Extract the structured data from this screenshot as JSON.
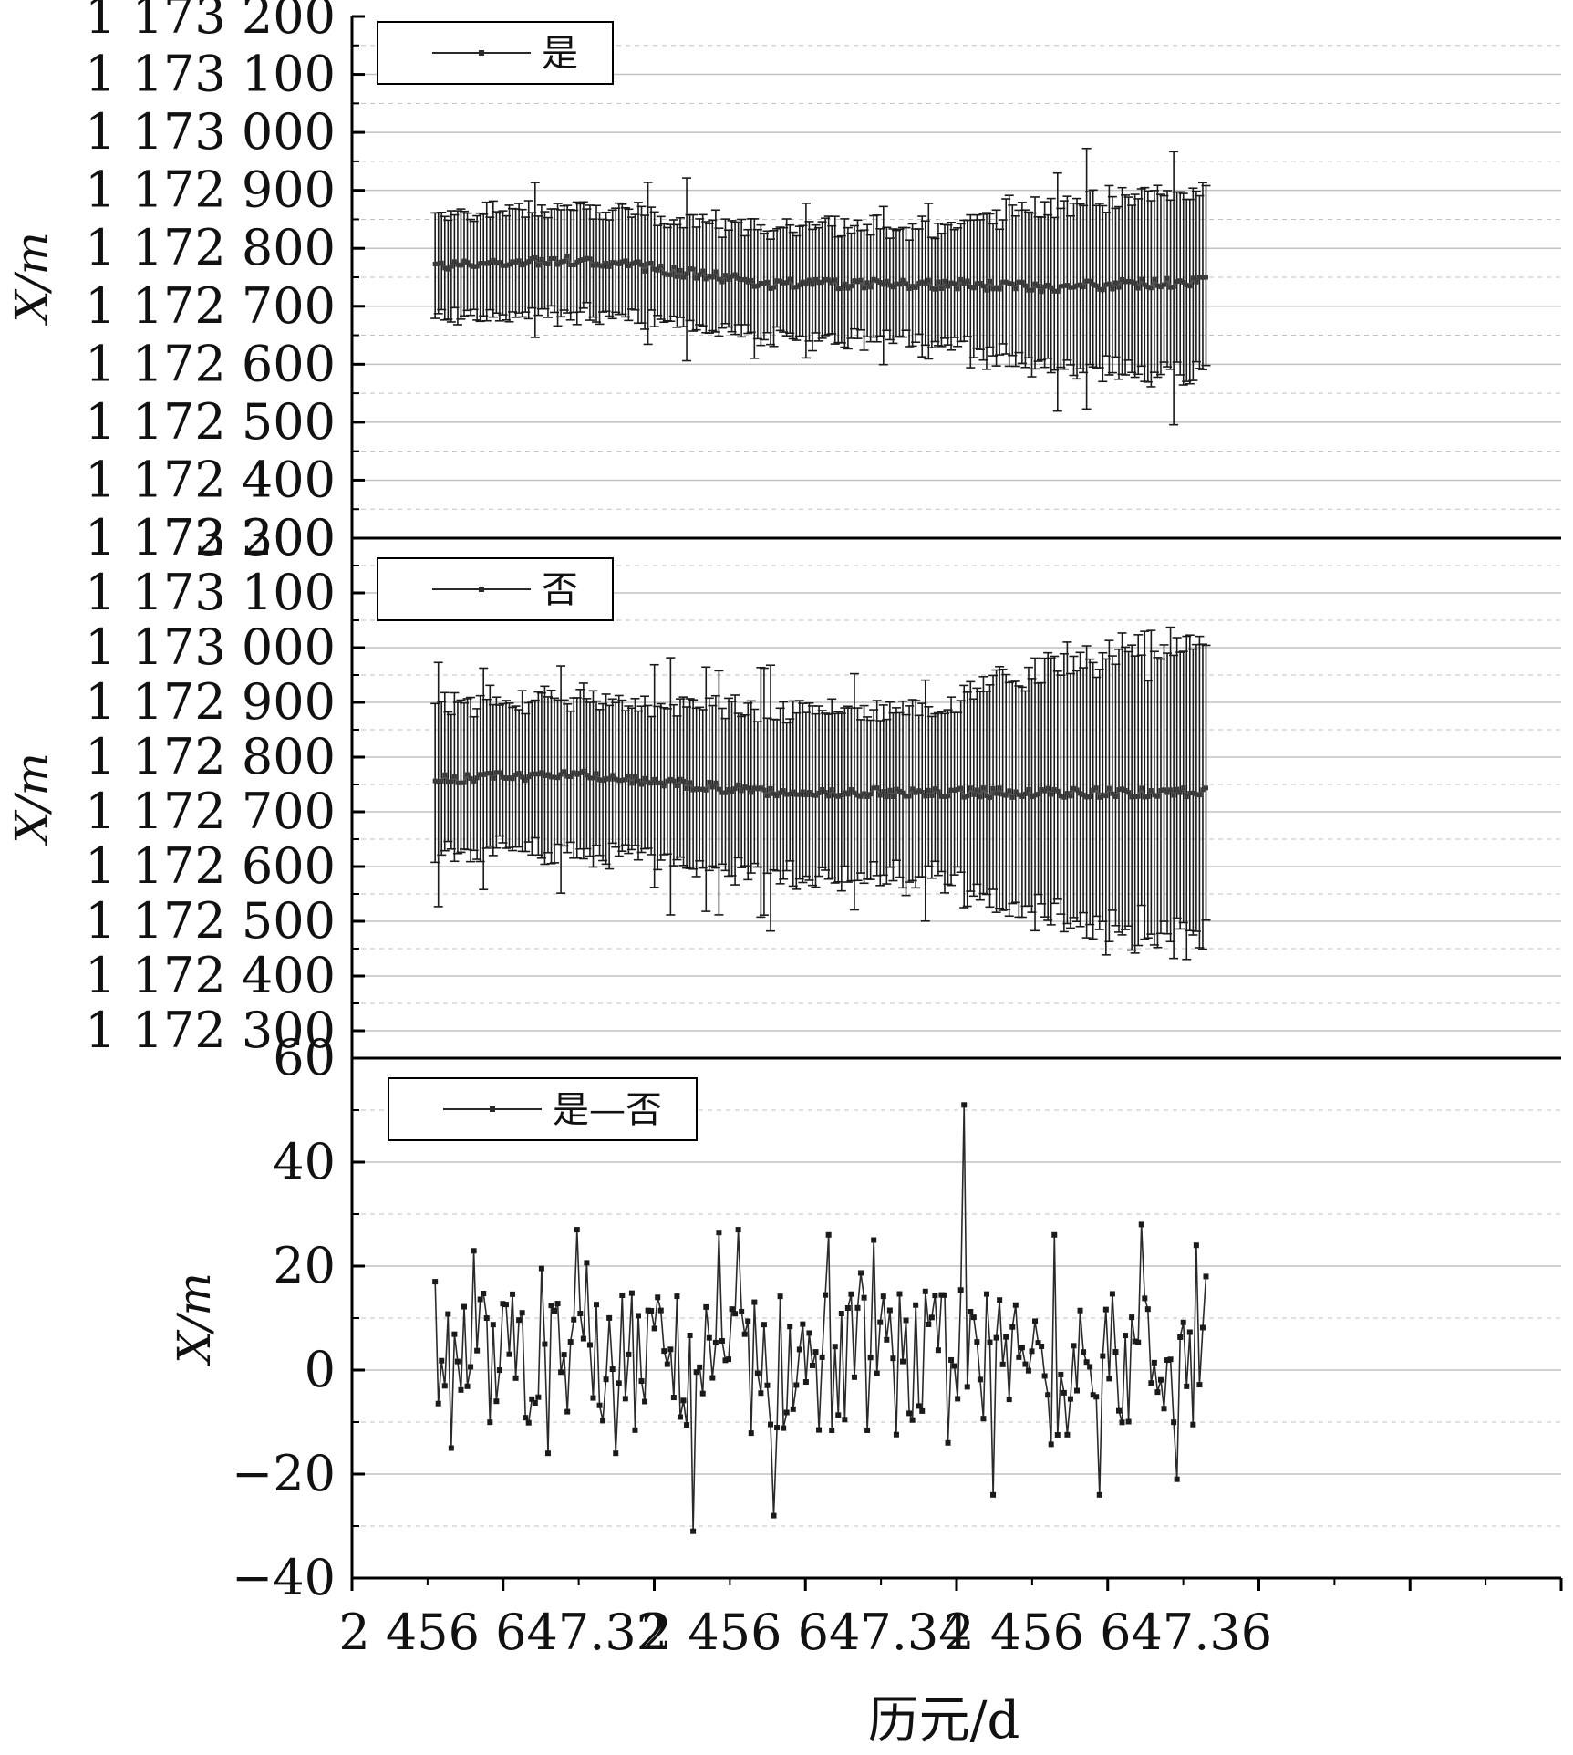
{
  "figure": {
    "x_axis_title": "历元/d",
    "x_ticks": [
      2456647.32,
      2456647.34,
      2456647.36
    ],
    "x_tick_labels": [
      "2 456 647.32",
      "2 456 647.34",
      "2 456 647.36"
    ]
  },
  "colors": {
    "series": "#2a2a2a",
    "errorbar": "#1a1a1a",
    "gridline": "#c2c2c2",
    "axis": "#000000"
  },
  "chart_data": [
    {
      "type": "line",
      "panel": "top",
      "legend": "是",
      "ylabel": "X/m",
      "ylim": [
        1172300,
        1173200
      ],
      "y_ticks": [
        1172300,
        1172400,
        1172500,
        1172600,
        1172700,
        1172800,
        1172900,
        1173000,
        1173100,
        1173200
      ],
      "y_tick_labels": [
        "1 172 300",
        "1 172 400",
        "1 172 500",
        "1 172 600",
        "1 172 700",
        "1 172 800",
        "1 172 900",
        "1 173 000",
        "1 173 100",
        "1 173 200"
      ],
      "xlim": [
        2456647.31,
        2456647.39
      ],
      "x_start": 2456647.3155,
      "x_end": 2456647.3665,
      "n_points": 240,
      "grid": true,
      "legend_position": "top-left",
      "error_bars": true,
      "mean_profile": [
        {
          "x": 2456647.3155,
          "y": 1172770
        },
        {
          "x": 2456647.325,
          "y": 1172780
        },
        {
          "x": 2456647.33,
          "y": 1172765
        },
        {
          "x": 2456647.338,
          "y": 1172738
        },
        {
          "x": 2456647.35,
          "y": 1172738
        },
        {
          "x": 2456647.355,
          "y": 1172733
        },
        {
          "x": 2456647.3665,
          "y": 1172742
        }
      ],
      "error_profile": [
        {
          "x": 2456647.3155,
          "y": 90
        },
        {
          "x": 2456647.325,
          "y": 90
        },
        {
          "x": 2456647.338,
          "y": 95
        },
        {
          "x": 2456647.35,
          "y": 100
        },
        {
          "x": 2456647.351,
          "y": 120
        },
        {
          "x": 2456647.36,
          "y": 150
        },
        {
          "x": 2456647.3665,
          "y": 165
        }
      ]
    },
    {
      "type": "line",
      "panel": "middle",
      "legend": "否",
      "ylabel": "X/m",
      "ylim": [
        1172250,
        1173200
      ],
      "y_ticks": [
        1172300,
        1172400,
        1172500,
        1172600,
        1172700,
        1172800,
        1172900,
        1173000,
        1173100,
        1173200
      ],
      "y_tick_labels": [
        "1 172 300",
        "1 172 400",
        "1 172 500",
        "1 172 600",
        "1 172 700",
        "1 172 800",
        "1 172 900",
        "1 173 000",
        "1 173 100",
        "1 173 200"
      ],
      "xlim": [
        2456647.31,
        2456647.39
      ],
      "x_start": 2456647.3155,
      "x_end": 2456647.3665,
      "n_points": 240,
      "grid": true,
      "legend_position": "top-left",
      "error_bars": true,
      "mean_profile": [
        {
          "x": 2456647.3155,
          "y": 1172760
        },
        {
          "x": 2456647.325,
          "y": 1172768
        },
        {
          "x": 2456647.33,
          "y": 1172755
        },
        {
          "x": 2456647.338,
          "y": 1172735
        },
        {
          "x": 2456647.35,
          "y": 1172735
        },
        {
          "x": 2456647.3665,
          "y": 1172735
        }
      ],
      "error_profile": [
        {
          "x": 2456647.3155,
          "y": 135
        },
        {
          "x": 2456647.325,
          "y": 140
        },
        {
          "x": 2456647.338,
          "y": 150
        },
        {
          "x": 2456647.35,
          "y": 160
        },
        {
          "x": 2456647.351,
          "y": 190
        },
        {
          "x": 2456647.36,
          "y": 250
        },
        {
          "x": 2456647.3665,
          "y": 270
        }
      ]
    },
    {
      "type": "line",
      "panel": "bottom",
      "legend": "是—否",
      "ylabel": "X/m",
      "ylim": [
        -40,
        60
      ],
      "y_ticks": [
        -40,
        -20,
        0,
        20,
        40,
        60
      ],
      "y_tick_labels": [
        "−40",
        "−20",
        "0",
        "20",
        "40",
        "60"
      ],
      "xlim": [
        2456647.31,
        2456647.39
      ],
      "x_start": 2456647.3155,
      "x_end": 2456647.3665,
      "n_points": 240,
      "grid": true,
      "legend_position": "top-left",
      "error_bars": false,
      "values_range": [
        -31,
        51
      ],
      "notable_points": [
        {
          "x": 2456647.3155,
          "y": 17
        },
        {
          "x": 2456647.3165,
          "y": -15
        },
        {
          "x": 2456647.3195,
          "y": -6
        },
        {
          "x": 2456647.323,
          "y": -16
        },
        {
          "x": 2456647.3248,
          "y": 27
        },
        {
          "x": 2456647.3275,
          "y": -16
        },
        {
          "x": 2456647.33,
          "y": 8
        },
        {
          "x": 2456647.3325,
          "y": -31
        },
        {
          "x": 2456647.3355,
          "y": 27
        },
        {
          "x": 2456647.338,
          "y": -28
        },
        {
          "x": 2456647.3415,
          "y": 26
        },
        {
          "x": 2456647.3445,
          "y": 25
        },
        {
          "x": 2456647.3495,
          "y": -14
        },
        {
          "x": 2456647.3505,
          "y": 51
        },
        {
          "x": 2456647.3525,
          "y": -24
        },
        {
          "x": 2456647.3565,
          "y": 26
        },
        {
          "x": 2456647.3595,
          "y": -24
        },
        {
          "x": 2456647.3622,
          "y": 28
        },
        {
          "x": 2456647.3645,
          "y": -21
        },
        {
          "x": 2456647.3658,
          "y": 24
        },
        {
          "x": 2456647.3665,
          "y": 18
        }
      ]
    }
  ]
}
